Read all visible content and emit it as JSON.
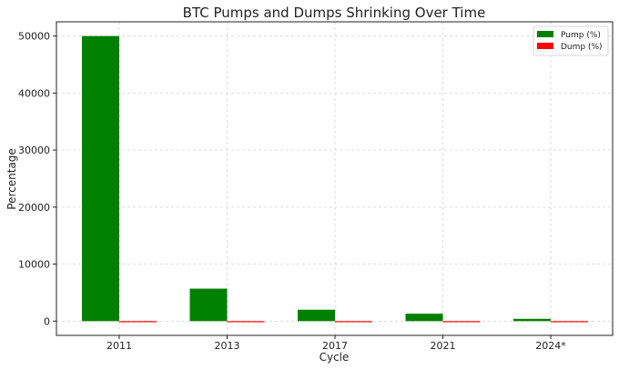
{
  "chart_data": {
    "type": "bar",
    "title": "BTC Pumps and Dumps Shrinking Over Time",
    "xlabel": "Cycle",
    "ylabel": "Percentage",
    "categories": [
      "2011",
      "2013",
      "2017",
      "2021",
      "2024*"
    ],
    "series": [
      {
        "name": "Pump (%)",
        "color": "#008000",
        "values": [
          50000,
          5700,
          2000,
          1300,
          400
        ]
      },
      {
        "name": "Dump (%)",
        "color": "#ff0000",
        "values": [
          -93,
          -85,
          -84,
          -77,
          -50
        ]
      }
    ],
    "ylim": [
      -2500,
      52500
    ],
    "yticks": [
      0,
      10000,
      20000,
      30000,
      40000,
      50000
    ],
    "grid": true,
    "legend_position": "top-right"
  }
}
